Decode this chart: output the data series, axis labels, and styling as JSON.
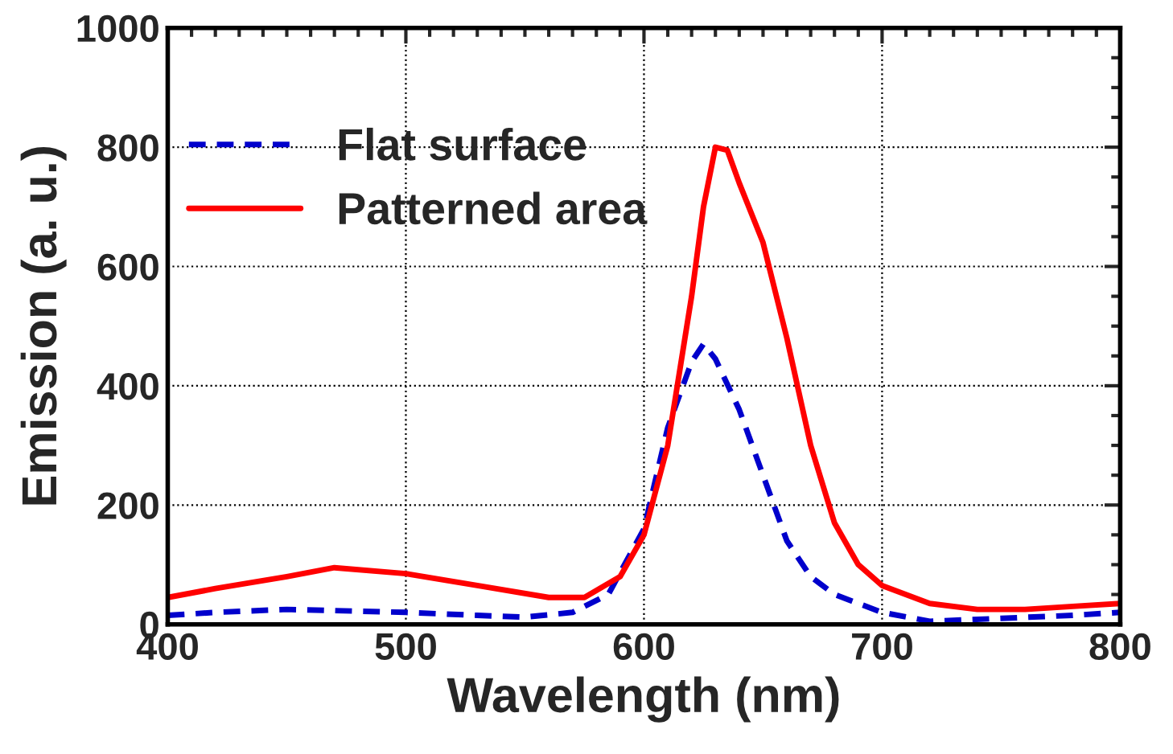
{
  "chart_data": {
    "type": "line",
    "xlabel": "Wavelength (nm)",
    "ylabel": "Emission (a. u.)",
    "xlim": [
      400,
      800
    ],
    "xticks": [
      400,
      500,
      600,
      700,
      800
    ],
    "ylim": [
      0,
      1000
    ],
    "yticks": [
      0,
      200,
      400,
      600,
      800,
      1000
    ],
    "grid": true,
    "legend": "top left",
    "series": [
      {
        "name": "Flat surface",
        "color": "#0000cc",
        "line_style": "dashed",
        "x": [
          400,
          420,
          450,
          480,
          500,
          530,
          550,
          570,
          585,
          600,
          610,
          620,
          625,
          630,
          640,
          650,
          660,
          670,
          680,
          700,
          720,
          750,
          780,
          800
        ],
        "values": [
          15,
          20,
          25,
          22,
          20,
          15,
          12,
          20,
          50,
          160,
          330,
          440,
          470,
          445,
          360,
          250,
          140,
          80,
          50,
          20,
          5,
          10,
          15,
          20
        ]
      },
      {
        "name": "Patterned area",
        "color": "#ff0000",
        "line_style": "solid",
        "x": [
          400,
          420,
          450,
          470,
          500,
          530,
          560,
          575,
          590,
          600,
          610,
          620,
          625,
          630,
          635,
          640,
          650,
          660,
          670,
          680,
          690,
          700,
          720,
          740,
          760,
          780,
          800
        ],
        "values": [
          45,
          60,
          80,
          95,
          85,
          65,
          45,
          45,
          80,
          150,
          300,
          550,
          700,
          800,
          795,
          740,
          640,
          480,
          300,
          170,
          100,
          65,
          35,
          25,
          25,
          30,
          35
        ]
      }
    ]
  }
}
